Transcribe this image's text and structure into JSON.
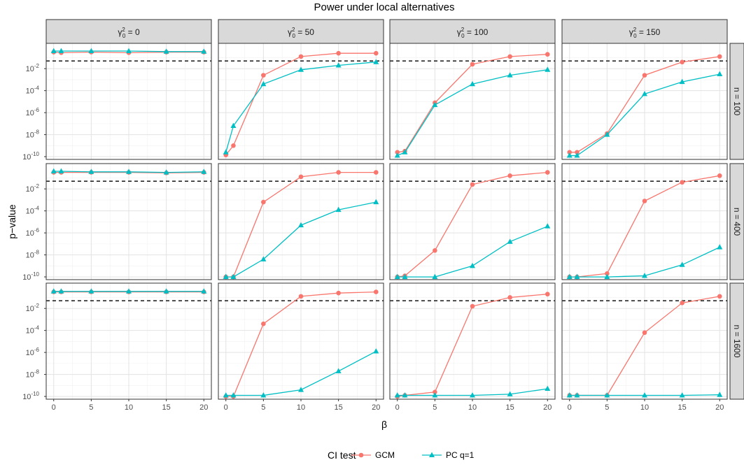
{
  "chart_data": {
    "type": "line",
    "title": "Power under local alternatives",
    "xlabel": "β",
    "ylabel": "p−value",
    "x": [
      0,
      1,
      5,
      10,
      15,
      20
    ],
    "x_ticks": [
      "0",
      "5",
      "10",
      "15",
      "20"
    ],
    "x_tick_values": [
      0,
      5,
      10,
      15,
      20
    ],
    "y_scale": "log10",
    "y_ticks": [
      "10^-10",
      "10^-8",
      "10^-6",
      "10^-4",
      "10^-2"
    ],
    "y_tick_values": [
      -10,
      -8,
      -6,
      -4,
      -2
    ],
    "y_tick_base": "10",
    "y_tick_exponents": [
      "-10",
      "-8",
      "-6",
      "-4",
      "-2"
    ],
    "xlim": [
      -1,
      21
    ],
    "ylim_log10": [
      -10.25,
      0.3
    ],
    "reference_line": {
      "y": 0.05,
      "style": "dashed",
      "color": "#000000"
    },
    "grid": true,
    "column_facets": [
      {
        "prefix": "γ",
        "sup": "2",
        "sub": "0",
        "suffix": " = 0"
      },
      {
        "prefix": "γ",
        "sup": "2",
        "sub": "0",
        "suffix": " = 50"
      },
      {
        "prefix": "γ",
        "sup": "2",
        "sub": "0",
        "suffix": " = 100"
      },
      {
        "prefix": "γ",
        "sup": "2",
        "sub": "0",
        "suffix": " = 150"
      }
    ],
    "row_facets": [
      "n = 100",
      "n = 400",
      "n = 1600"
    ],
    "legend": {
      "title": "CI test",
      "position": "bottom",
      "entries": [
        {
          "name": "GCM",
          "color": "#F8766D",
          "shape": "circle"
        },
        {
          "name": "PC q=1",
          "color": "#00BFC4",
          "shape": "triangle"
        }
      ]
    },
    "panels_log10_p": [
      [
        {
          "GCM": [
            -0.5,
            -0.55,
            -0.5,
            -0.55,
            -0.5,
            -0.5
          ],
          "PC q=1": [
            -0.4,
            -0.4,
            -0.4,
            -0.4,
            -0.45,
            -0.45
          ]
        },
        {
          "GCM": [
            -9.85,
            -9.0,
            -2.6,
            -0.9,
            -0.6,
            -0.6
          ],
          "PC q=1": [
            -9.6,
            -7.2,
            -3.4,
            -2.1,
            -1.7,
            -1.4
          ]
        },
        {
          "GCM": [
            -9.6,
            -9.5,
            -5.1,
            -1.6,
            -0.9,
            -0.7
          ],
          "PC q=1": [
            -9.9,
            -9.6,
            -5.3,
            -3.4,
            -2.6,
            -2.1
          ]
        },
        {
          "GCM": [
            -9.6,
            -9.6,
            -7.9,
            -2.6,
            -1.4,
            -0.9
          ],
          "PC q=1": [
            -9.9,
            -9.9,
            -8.0,
            -4.3,
            -3.2,
            -2.5
          ]
        }
      ],
      [
        {
          "GCM": [
            -0.5,
            -0.5,
            -0.5,
            -0.5,
            -0.55,
            -0.5
          ],
          "PC q=1": [
            -0.4,
            -0.4,
            -0.45,
            -0.45,
            -0.5,
            -0.45
          ]
        },
        {
          "GCM": [
            -10.0,
            -10.0,
            -3.2,
            -0.9,
            -0.5,
            -0.5
          ],
          "PC q=1": [
            -10.0,
            -10.0,
            -8.4,
            -5.3,
            -3.9,
            -3.2
          ]
        },
        {
          "GCM": [
            -10.0,
            -9.9,
            -7.6,
            -1.6,
            -0.8,
            -0.5
          ],
          "PC q=1": [
            -10.0,
            -10.0,
            -10.0,
            -9.0,
            -6.8,
            -5.4
          ]
        },
        {
          "GCM": [
            -10.0,
            -10.0,
            -9.7,
            -3.1,
            -1.4,
            -0.8
          ],
          "PC q=1": [
            -10.0,
            -10.0,
            -10.0,
            -9.9,
            -8.9,
            -7.3
          ]
        }
      ],
      [
        {
          "GCM": [
            -0.5,
            -0.5,
            -0.5,
            -0.5,
            -0.5,
            -0.5
          ],
          "PC q=1": [
            -0.45,
            -0.45,
            -0.45,
            -0.45,
            -0.45,
            -0.45
          ]
        },
        {
          "GCM": [
            -10.0,
            -10.0,
            -3.4,
            -0.9,
            -0.6,
            -0.5
          ],
          "PC q=1": [
            -9.9,
            -9.9,
            -9.9,
            -9.4,
            -7.7,
            -5.9
          ]
        },
        {
          "GCM": [
            -10.0,
            -9.9,
            -9.6,
            -1.8,
            -1.0,
            -0.7
          ],
          "PC q=1": [
            -9.9,
            -9.9,
            -9.9,
            -9.9,
            -9.8,
            -9.3
          ]
        },
        {
          "GCM": [
            -9.9,
            -9.9,
            -9.9,
            -4.2,
            -1.5,
            -0.9
          ],
          "PC q=1": [
            -9.9,
            -9.9,
            -9.9,
            -9.9,
            -9.9,
            -9.85
          ]
        }
      ]
    ]
  }
}
